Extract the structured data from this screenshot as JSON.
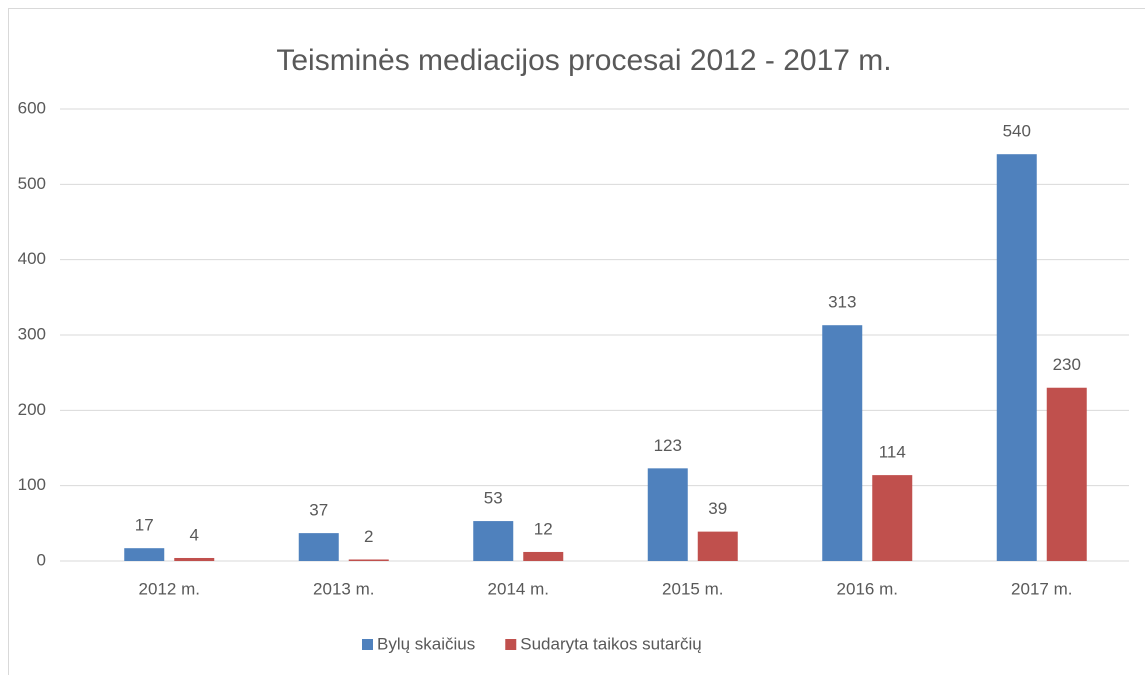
{
  "chart_data": {
    "type": "bar",
    "title": "Teisminės mediacijos procesai 2012 - 2017 m.",
    "categories": [
      "2012 m.",
      "2013 m.",
      "2014 m.",
      "2015 m.",
      "2016 m.",
      "2017 m."
    ],
    "series": [
      {
        "name": "Bylų skaičius",
        "color": "#4f81bd",
        "values": [
          17,
          37,
          53,
          123,
          313,
          540
        ]
      },
      {
        "name": "Sudaryta taikos sutarčių",
        "color": "#c0504d",
        "values": [
          4,
          2,
          12,
          39,
          114,
          230
        ]
      }
    ],
    "ylim": [
      0,
      600
    ],
    "yticks": [
      0,
      100,
      200,
      300,
      400,
      500,
      600
    ],
    "grid": true,
    "legend": "bottom"
  }
}
